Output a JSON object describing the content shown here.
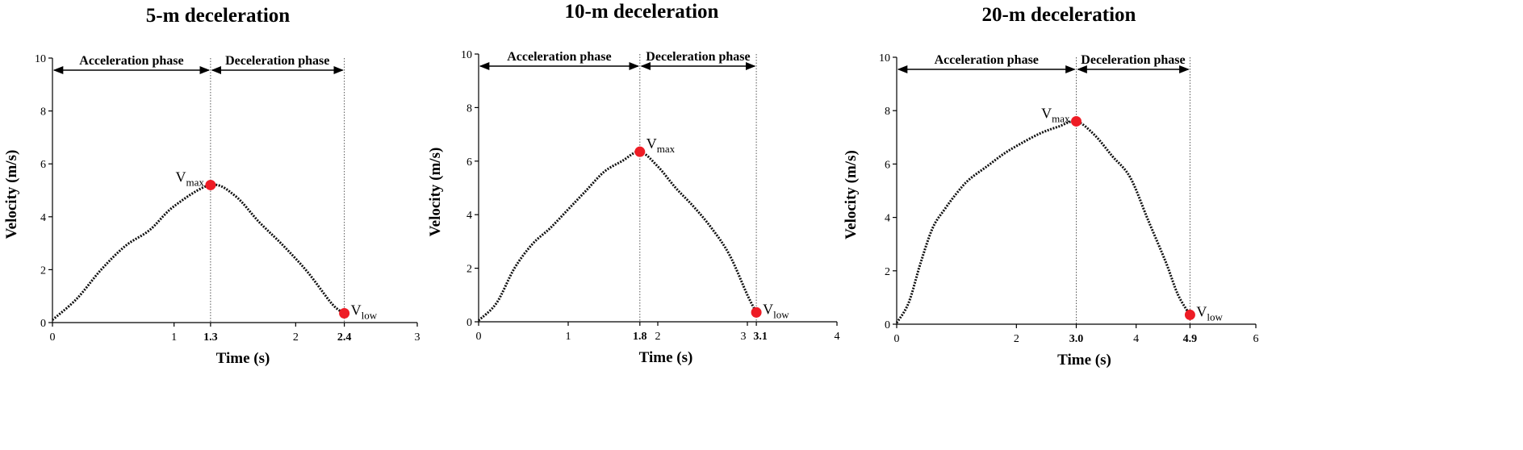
{
  "chart_data": [
    {
      "type": "line",
      "title": "5-m deceleration",
      "xlabel": "Time (s)",
      "ylabel": "Velocity (m/s)",
      "xlim": [
        0,
        3
      ],
      "ylim": [
        0,
        10
      ],
      "x_ticks": [
        "0",
        "1",
        "1.3",
        "2",
        "2.4",
        "3"
      ],
      "y_ticks": [
        "0",
        "2",
        "4",
        "6",
        "8",
        "10"
      ],
      "phases": [
        {
          "label": "Acceleration phase",
          "from": 0,
          "to": 1.3
        },
        {
          "label": "Deceleration phase",
          "from": 1.3,
          "to": 2.4
        }
      ],
      "markers": [
        {
          "label": "V",
          "sub": "max",
          "x": 1.3,
          "y": 5.2,
          "side": "left"
        },
        {
          "label": "V",
          "sub": "low",
          "x": 2.4,
          "y": 0.35,
          "side": "right"
        }
      ],
      "series": [
        {
          "x": [
            0,
            0.2,
            0.4,
            0.6,
            0.8,
            1.0,
            1.3,
            1.5,
            1.7,
            1.9,
            2.1,
            2.3,
            2.4
          ],
          "y": [
            0.1,
            0.9,
            2.0,
            2.9,
            3.5,
            4.4,
            5.2,
            4.8,
            3.8,
            2.9,
            1.9,
            0.7,
            0.35
          ]
        }
      ],
      "grid": false,
      "color": "#ee1c25"
    },
    {
      "type": "line",
      "title": "10-m deceleration",
      "xlabel": "Time (s)",
      "ylabel": "Velocity (m/s)",
      "xlim": [
        0,
        4
      ],
      "ylim": [
        0,
        10
      ],
      "x_ticks": [
        "0",
        "1",
        "1.8",
        "2",
        "3",
        "3.1",
        "4"
      ],
      "y_ticks": [
        "0",
        "2",
        "4",
        "6",
        "8",
        "10"
      ],
      "phases": [
        {
          "label": "Acceleration phase",
          "from": 0,
          "to": 1.8
        },
        {
          "label": "Deceleration phase",
          "from": 1.8,
          "to": 3.1
        }
      ],
      "markers": [
        {
          "label": "V",
          "sub": "max",
          "x": 1.8,
          "y": 6.35,
          "side": "right"
        },
        {
          "label": "V",
          "sub": "low",
          "x": 3.1,
          "y": 0.35,
          "side": "right"
        }
      ],
      "series": [
        {
          "x": [
            0,
            0.2,
            0.4,
            0.6,
            0.8,
            1.0,
            1.2,
            1.4,
            1.6,
            1.8,
            2.0,
            2.2,
            2.4,
            2.6,
            2.8,
            3.0,
            3.1
          ],
          "y": [
            0.05,
            0.7,
            2.0,
            2.9,
            3.5,
            4.2,
            4.9,
            5.6,
            6.0,
            6.35,
            5.8,
            5.0,
            4.3,
            3.5,
            2.5,
            1.0,
            0.35
          ]
        }
      ],
      "grid": false,
      "color": "#ee1c25"
    },
    {
      "type": "line",
      "title": "20-m deceleration",
      "xlabel": "Time (s)",
      "ylabel": "Velocity (m/s)",
      "xlim": [
        0,
        6
      ],
      "ylim": [
        0,
        10
      ],
      "x_ticks": [
        "0",
        "2",
        "3.0",
        "4",
        "4.9",
        "6"
      ],
      "y_ticks": [
        "0",
        "2",
        "4",
        "6",
        "8",
        "10"
      ],
      "phases": [
        {
          "label": "Acceleration phase",
          "from": 0,
          "to": 3.0
        },
        {
          "label": "Deceleration phase",
          "from": 3.0,
          "to": 4.9
        }
      ],
      "markers": [
        {
          "label": "V",
          "sub": "max",
          "x": 3.0,
          "y": 7.6,
          "side": "left"
        },
        {
          "label": "V",
          "sub": "low",
          "x": 4.9,
          "y": 0.35,
          "side": "right"
        }
      ],
      "series": [
        {
          "x": [
            0,
            0.2,
            0.4,
            0.6,
            0.8,
            1.0,
            1.2,
            1.5,
            1.8,
            2.1,
            2.4,
            2.7,
            3.0,
            3.3,
            3.6,
            3.9,
            4.2,
            4.5,
            4.7,
            4.9
          ],
          "y": [
            0.05,
            0.8,
            2.3,
            3.6,
            4.3,
            4.9,
            5.4,
            5.9,
            6.4,
            6.8,
            7.15,
            7.4,
            7.6,
            7.1,
            6.3,
            5.5,
            3.9,
            2.3,
            1.1,
            0.35
          ]
        }
      ],
      "grid": false,
      "color": "#ee1c25"
    }
  ]
}
